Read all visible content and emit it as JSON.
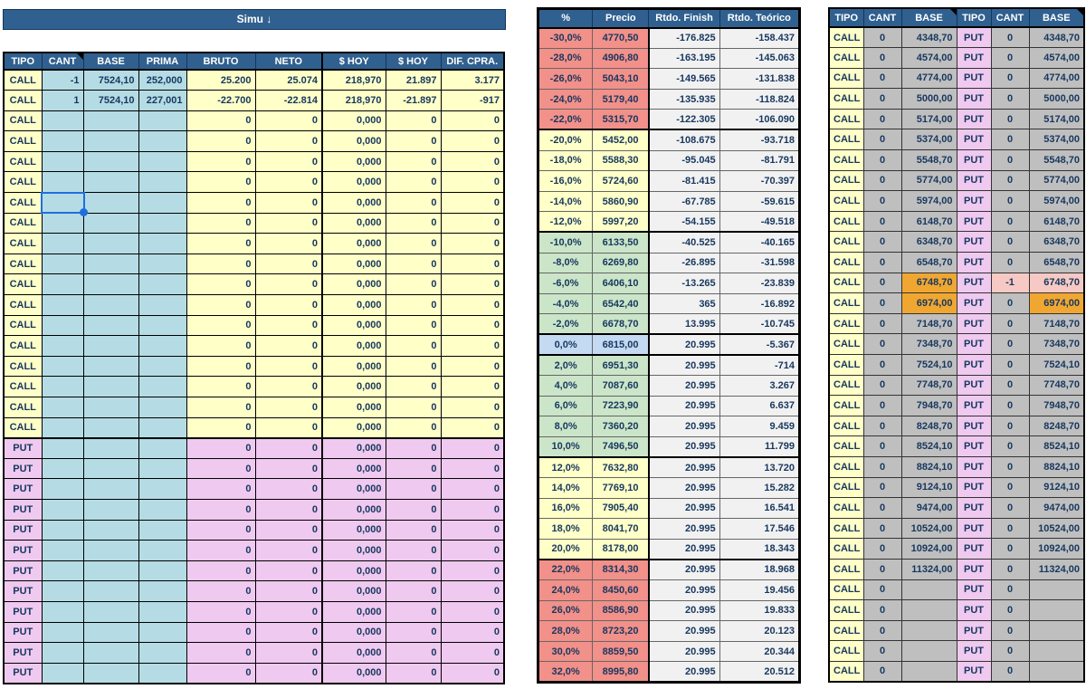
{
  "colors": {
    "header_blue": "#30608F",
    "call_yellow": "#FFFFC8",
    "put_pink": "#EFC9EF",
    "input_blue": "#B5DCE4",
    "band_salmon": "#F2908A",
    "band_yellow": "#FFFFC8",
    "band_green": "#CBE5C8",
    "band_blue": "#C4D9F2",
    "grid_grey": "#BFBFBF",
    "highlight_orange": "#F0A732",
    "highlight_pink": "#F6C9C4",
    "negative_red": "#FF0000",
    "positive_green": "#1B7A1B",
    "selection_blue": "#1E6FDE"
  },
  "left_table": {
    "title": "Simu ↓",
    "headers": [
      "TIPO",
      "CANT",
      "BASE",
      "PRIMA",
      "BRUTO",
      "NETO",
      "$ HOY",
      "$ HOY",
      "DIF. CPRA."
    ],
    "call_row_count": 18,
    "put_row_count": 12,
    "selection": {
      "row_index": 6,
      "column": "CANT"
    },
    "rows": [
      {
        "tipo": "CALL",
        "cant": "-1",
        "base": "7524,10",
        "prima": "252,000",
        "bruto": "25.200",
        "neto": "25.074",
        "hoy_total": "218,970",
        "hoy_unit": "21.897",
        "dif": "3.177"
      },
      {
        "tipo": "CALL",
        "cant": "1",
        "base": "7524,10",
        "prima": "227,001",
        "bruto": "-22.700",
        "neto": "-22.814",
        "hoy_total": "218,970",
        "hoy_unit": "-21.897",
        "dif": "-917"
      },
      {
        "tipo": "CALL",
        "cant": "",
        "base": "",
        "prima": "",
        "bruto": "0",
        "neto": "0",
        "hoy_total": "0,000",
        "hoy_unit": "0",
        "dif": "0"
      },
      {
        "tipo": "CALL",
        "cant": "",
        "base": "",
        "prima": "",
        "bruto": "0",
        "neto": "0",
        "hoy_total": "0,000",
        "hoy_unit": "0",
        "dif": "0"
      },
      {
        "tipo": "CALL",
        "cant": "",
        "base": "",
        "prima": "",
        "bruto": "0",
        "neto": "0",
        "hoy_total": "0,000",
        "hoy_unit": "0",
        "dif": "0"
      },
      {
        "tipo": "CALL",
        "cant": "",
        "base": "",
        "prima": "",
        "bruto": "0",
        "neto": "0",
        "hoy_total": "0,000",
        "hoy_unit": "0",
        "dif": "0"
      },
      {
        "tipo": "CALL",
        "cant": "",
        "base": "",
        "prima": "",
        "bruto": "0",
        "neto": "0",
        "hoy_total": "0,000",
        "hoy_unit": "0",
        "dif": "0"
      },
      {
        "tipo": "CALL",
        "cant": "",
        "base": "",
        "prima": "",
        "bruto": "0",
        "neto": "0",
        "hoy_total": "0,000",
        "hoy_unit": "0",
        "dif": "0"
      },
      {
        "tipo": "CALL",
        "cant": "",
        "base": "",
        "prima": "",
        "bruto": "0",
        "neto": "0",
        "hoy_total": "0,000",
        "hoy_unit": "0",
        "dif": "0"
      },
      {
        "tipo": "CALL",
        "cant": "",
        "base": "",
        "prima": "",
        "bruto": "0",
        "neto": "0",
        "hoy_total": "0,000",
        "hoy_unit": "0",
        "dif": "0"
      },
      {
        "tipo": "CALL",
        "cant": "",
        "base": "",
        "prima": "",
        "bruto": "0",
        "neto": "0",
        "hoy_total": "0,000",
        "hoy_unit": "0",
        "dif": "0"
      },
      {
        "tipo": "CALL",
        "cant": "",
        "base": "",
        "prima": "",
        "bruto": "0",
        "neto": "0",
        "hoy_total": "0,000",
        "hoy_unit": "0",
        "dif": "0"
      },
      {
        "tipo": "CALL",
        "cant": "",
        "base": "",
        "prima": "",
        "bruto": "0",
        "neto": "0",
        "hoy_total": "0,000",
        "hoy_unit": "0",
        "dif": "0"
      },
      {
        "tipo": "CALL",
        "cant": "",
        "base": "",
        "prima": "",
        "bruto": "0",
        "neto": "0",
        "hoy_total": "0,000",
        "hoy_unit": "0",
        "dif": "0"
      },
      {
        "tipo": "CALL",
        "cant": "",
        "base": "",
        "prima": "",
        "bruto": "0",
        "neto": "0",
        "hoy_total": "0,000",
        "hoy_unit": "0",
        "dif": "0"
      },
      {
        "tipo": "CALL",
        "cant": "",
        "base": "",
        "prima": "",
        "bruto": "0",
        "neto": "0",
        "hoy_total": "0,000",
        "hoy_unit": "0",
        "dif": "0"
      },
      {
        "tipo": "CALL",
        "cant": "",
        "base": "",
        "prima": "",
        "bruto": "0",
        "neto": "0",
        "hoy_total": "0,000",
        "hoy_unit": "0",
        "dif": "0"
      },
      {
        "tipo": "CALL",
        "cant": "",
        "base": "",
        "prima": "",
        "bruto": "0",
        "neto": "0",
        "hoy_total": "0,000",
        "hoy_unit": "0",
        "dif": "0"
      },
      {
        "tipo": "PUT",
        "cant": "",
        "base": "",
        "prima": "",
        "bruto": "0",
        "neto": "0",
        "hoy_total": "0,000",
        "hoy_unit": "0",
        "dif": "0"
      },
      {
        "tipo": "PUT",
        "cant": "",
        "base": "",
        "prima": "",
        "bruto": "0",
        "neto": "0",
        "hoy_total": "0,000",
        "hoy_unit": "0",
        "dif": "0"
      },
      {
        "tipo": "PUT",
        "cant": "",
        "base": "",
        "prima": "",
        "bruto": "0",
        "neto": "0",
        "hoy_total": "0,000",
        "hoy_unit": "0",
        "dif": "0"
      },
      {
        "tipo": "PUT",
        "cant": "",
        "base": "",
        "prima": "",
        "bruto": "0",
        "neto": "0",
        "hoy_total": "0,000",
        "hoy_unit": "0",
        "dif": "0"
      },
      {
        "tipo": "PUT",
        "cant": "",
        "base": "",
        "prima": "",
        "bruto": "0",
        "neto": "0",
        "hoy_total": "0,000",
        "hoy_unit": "0",
        "dif": "0"
      },
      {
        "tipo": "PUT",
        "cant": "",
        "base": "",
        "prima": "",
        "bruto": "0",
        "neto": "0",
        "hoy_total": "0,000",
        "hoy_unit": "0",
        "dif": "0"
      },
      {
        "tipo": "PUT",
        "cant": "",
        "base": "",
        "prima": "",
        "bruto": "0",
        "neto": "0",
        "hoy_total": "0,000",
        "hoy_unit": "0",
        "dif": "0"
      },
      {
        "tipo": "PUT",
        "cant": "",
        "base": "",
        "prima": "",
        "bruto": "0",
        "neto": "0",
        "hoy_total": "0,000",
        "hoy_unit": "0",
        "dif": "0"
      },
      {
        "tipo": "PUT",
        "cant": "",
        "base": "",
        "prima": "",
        "bruto": "0",
        "neto": "0",
        "hoy_total": "0,000",
        "hoy_unit": "0",
        "dif": "0"
      },
      {
        "tipo": "PUT",
        "cant": "",
        "base": "",
        "prima": "",
        "bruto": "0",
        "neto": "0",
        "hoy_total": "0,000",
        "hoy_unit": "0",
        "dif": "0"
      },
      {
        "tipo": "PUT",
        "cant": "",
        "base": "",
        "prima": "",
        "bruto": "0",
        "neto": "0",
        "hoy_total": "0,000",
        "hoy_unit": "0",
        "dif": "0"
      },
      {
        "tipo": "PUT",
        "cant": "",
        "base": "",
        "prima": "",
        "bruto": "0",
        "neto": "0",
        "hoy_total": "0,000",
        "hoy_unit": "0",
        "dif": "0"
      }
    ]
  },
  "middle_table": {
    "headers": [
      "%",
      "Precio",
      "Rtdo. Finish",
      "Rtdo. Teórico"
    ],
    "rows": [
      {
        "pct": "-30,0%",
        "precio": "4770,50",
        "finish": "-176.825",
        "teorico": "-158.437",
        "band": "salmon"
      },
      {
        "pct": "-28,0%",
        "precio": "4906,80",
        "finish": "-163.195",
        "teorico": "-145.063",
        "band": "salmon"
      },
      {
        "pct": "-26,0%",
        "precio": "5043,10",
        "finish": "-149.565",
        "teorico": "-131.838",
        "band": "salmon"
      },
      {
        "pct": "-24,0%",
        "precio": "5179,40",
        "finish": "-135.935",
        "teorico": "-118.824",
        "band": "salmon"
      },
      {
        "pct": "-22,0%",
        "precio": "5315,70",
        "finish": "-122.305",
        "teorico": "-106.090",
        "band": "salmon"
      },
      {
        "pct": "-20,0%",
        "precio": "5452,00",
        "finish": "-108.675",
        "teorico": "-93.718",
        "band": "yellow"
      },
      {
        "pct": "-18,0%",
        "precio": "5588,30",
        "finish": "-95.045",
        "teorico": "-81.791",
        "band": "yellow"
      },
      {
        "pct": "-16,0%",
        "precio": "5724,60",
        "finish": "-81.415",
        "teorico": "-70.397",
        "band": "yellow"
      },
      {
        "pct": "-14,0%",
        "precio": "5860,90",
        "finish": "-67.785",
        "teorico": "-59.615",
        "band": "yellow"
      },
      {
        "pct": "-12,0%",
        "precio": "5997,20",
        "finish": "-54.155",
        "teorico": "-49.518",
        "band": "yellow"
      },
      {
        "pct": "-10,0%",
        "precio": "6133,50",
        "finish": "-40.525",
        "teorico": "-40.165",
        "band": "green"
      },
      {
        "pct": "-8,0%",
        "precio": "6269,80",
        "finish": "-26.895",
        "teorico": "-31.598",
        "band": "green"
      },
      {
        "pct": "-6,0%",
        "precio": "6406,10",
        "finish": "-13.265",
        "teorico": "-23.839",
        "band": "green"
      },
      {
        "pct": "-4,0%",
        "precio": "6542,40",
        "finish": "365",
        "teorico": "-16.892",
        "band": "green"
      },
      {
        "pct": "-2,0%",
        "precio": "6678,70",
        "finish": "13.995",
        "teorico": "-10.745",
        "band": "green"
      },
      {
        "pct": "0,0%",
        "precio": "6815,00",
        "finish": "20.995",
        "teorico": "-5.367",
        "band": "blue"
      },
      {
        "pct": "2,0%",
        "precio": "6951,30",
        "finish": "20.995",
        "teorico": "-714",
        "band": "green"
      },
      {
        "pct": "4,0%",
        "precio": "7087,60",
        "finish": "20.995",
        "teorico": "3.267",
        "band": "green"
      },
      {
        "pct": "6,0%",
        "precio": "7223,90",
        "finish": "20.995",
        "teorico": "6.637",
        "band": "green"
      },
      {
        "pct": "8,0%",
        "precio": "7360,20",
        "finish": "20.995",
        "teorico": "9.459",
        "band": "green"
      },
      {
        "pct": "10,0%",
        "precio": "7496,50",
        "finish": "20.995",
        "teorico": "11.799",
        "band": "green"
      },
      {
        "pct": "12,0%",
        "precio": "7632,80",
        "finish": "20.995",
        "teorico": "13.720",
        "band": "yellow"
      },
      {
        "pct": "14,0%",
        "precio": "7769,10",
        "finish": "20.995",
        "teorico": "15.282",
        "band": "yellow"
      },
      {
        "pct": "16,0%",
        "precio": "7905,40",
        "finish": "20.995",
        "teorico": "16.541",
        "band": "yellow"
      },
      {
        "pct": "18,0%",
        "precio": "8041,70",
        "finish": "20.995",
        "teorico": "17.546",
        "band": "yellow"
      },
      {
        "pct": "20,0%",
        "precio": "8178,00",
        "finish": "20.995",
        "teorico": "18.343",
        "band": "yellow"
      },
      {
        "pct": "22,0%",
        "precio": "8314,30",
        "finish": "20.995",
        "teorico": "18.968",
        "band": "salmon"
      },
      {
        "pct": "24,0%",
        "precio": "8450,60",
        "finish": "20.995",
        "teorico": "19.456",
        "band": "salmon"
      },
      {
        "pct": "26,0%",
        "precio": "8586,90",
        "finish": "20.995",
        "teorico": "19.833",
        "band": "salmon"
      },
      {
        "pct": "28,0%",
        "precio": "8723,20",
        "finish": "20.995",
        "teorico": "20.123",
        "band": "salmon"
      },
      {
        "pct": "30,0%",
        "precio": "8859,50",
        "finish": "20.995",
        "teorico": "20.344",
        "band": "salmon"
      },
      {
        "pct": "32,0%",
        "precio": "8995,80",
        "finish": "20.995",
        "teorico": "20.512",
        "band": "salmon"
      }
    ]
  },
  "right_table": {
    "headers": [
      "TIPO",
      "CANT",
      "BASE",
      "TIPO",
      "CANT",
      "BASE"
    ],
    "rows": [
      {
        "call_tipo": "CALL",
        "call_cant": "0",
        "call_base": "4348,70",
        "put_tipo": "PUT",
        "put_cant": "0",
        "put_base": "4348,70"
      },
      {
        "call_tipo": "CALL",
        "call_cant": "0",
        "call_base": "4574,00",
        "put_tipo": "PUT",
        "put_cant": "0",
        "put_base": "4574,00"
      },
      {
        "call_tipo": "CALL",
        "call_cant": "0",
        "call_base": "4774,00",
        "put_tipo": "PUT",
        "put_cant": "0",
        "put_base": "4774,00"
      },
      {
        "call_tipo": "CALL",
        "call_cant": "0",
        "call_base": "5000,00",
        "put_tipo": "PUT",
        "put_cant": "0",
        "put_base": "5000,00"
      },
      {
        "call_tipo": "CALL",
        "call_cant": "0",
        "call_base": "5174,00",
        "put_tipo": "PUT",
        "put_cant": "0",
        "put_base": "5174,00"
      },
      {
        "call_tipo": "CALL",
        "call_cant": "0",
        "call_base": "5374,00",
        "put_tipo": "PUT",
        "put_cant": "0",
        "put_base": "5374,00"
      },
      {
        "call_tipo": "CALL",
        "call_cant": "0",
        "call_base": "5548,70",
        "put_tipo": "PUT",
        "put_cant": "0",
        "put_base": "5548,70"
      },
      {
        "call_tipo": "CALL",
        "call_cant": "0",
        "call_base": "5774,00",
        "put_tipo": "PUT",
        "put_cant": "0",
        "put_base": "5774,00"
      },
      {
        "call_tipo": "CALL",
        "call_cant": "0",
        "call_base": "5974,00",
        "put_tipo": "PUT",
        "put_cant": "0",
        "put_base": "5974,00"
      },
      {
        "call_tipo": "CALL",
        "call_cant": "0",
        "call_base": "6148,70",
        "put_tipo": "PUT",
        "put_cant": "0",
        "put_base": "6148,70"
      },
      {
        "call_tipo": "CALL",
        "call_cant": "0",
        "call_base": "6348,70",
        "put_tipo": "PUT",
        "put_cant": "0",
        "put_base": "6348,70"
      },
      {
        "call_tipo": "CALL",
        "call_cant": "0",
        "call_base": "6548,70",
        "put_tipo": "PUT",
        "put_cant": "0",
        "put_base": "6548,70"
      },
      {
        "call_tipo": "CALL",
        "call_cant": "0",
        "call_base": "6748,70",
        "put_tipo": "PUT",
        "put_cant": "-1",
        "put_base": "6748,70",
        "call_base_hl": "orange",
        "put_cant_hl": "pink",
        "put_base_hl": "pink"
      },
      {
        "call_tipo": "CALL",
        "call_cant": "0",
        "call_base": "6974,00",
        "put_tipo": "PUT",
        "put_cant": "0",
        "put_base": "6974,00",
        "call_base_hl": "orange",
        "put_base_hl": "orange"
      },
      {
        "call_tipo": "CALL",
        "call_cant": "0",
        "call_base": "7148,70",
        "put_tipo": "PUT",
        "put_cant": "0",
        "put_base": "7148,70"
      },
      {
        "call_tipo": "CALL",
        "call_cant": "0",
        "call_base": "7348,70",
        "put_tipo": "PUT",
        "put_cant": "0",
        "put_base": "7348,70"
      },
      {
        "call_tipo": "CALL",
        "call_cant": "0",
        "call_base": "7524,10",
        "put_tipo": "PUT",
        "put_cant": "0",
        "put_base": "7524,10"
      },
      {
        "call_tipo": "CALL",
        "call_cant": "0",
        "call_base": "7748,70",
        "put_tipo": "PUT",
        "put_cant": "0",
        "put_base": "7748,70"
      },
      {
        "call_tipo": "CALL",
        "call_cant": "0",
        "call_base": "7948,70",
        "put_tipo": "PUT",
        "put_cant": "0",
        "put_base": "7948,70"
      },
      {
        "call_tipo": "CALL",
        "call_cant": "0",
        "call_base": "8248,70",
        "put_tipo": "PUT",
        "put_cant": "0",
        "put_base": "8248,70"
      },
      {
        "call_tipo": "CALL",
        "call_cant": "0",
        "call_base": "8524,10",
        "put_tipo": "PUT",
        "put_cant": "0",
        "put_base": "8524,10"
      },
      {
        "call_tipo": "CALL",
        "call_cant": "0",
        "call_base": "8824,10",
        "put_tipo": "PUT",
        "put_cant": "0",
        "put_base": "8824,10"
      },
      {
        "call_tipo": "CALL",
        "call_cant": "0",
        "call_base": "9124,10",
        "put_tipo": "PUT",
        "put_cant": "0",
        "put_base": "9124,10"
      },
      {
        "call_tipo": "CALL",
        "call_cant": "0",
        "call_base": "9474,00",
        "put_tipo": "PUT",
        "put_cant": "0",
        "put_base": "9474,00"
      },
      {
        "call_tipo": "CALL",
        "call_cant": "0",
        "call_base": "10524,00",
        "put_tipo": "PUT",
        "put_cant": "0",
        "put_base": "10524,00"
      },
      {
        "call_tipo": "CALL",
        "call_cant": "0",
        "call_base": "10924,00",
        "put_tipo": "PUT",
        "put_cant": "0",
        "put_base": "10924,00"
      },
      {
        "call_tipo": "CALL",
        "call_cant": "0",
        "call_base": "11324,00",
        "put_tipo": "PUT",
        "put_cant": "0",
        "put_base": "11324,00"
      },
      {
        "call_tipo": "CALL",
        "call_cant": "0",
        "call_base": "",
        "put_tipo": "PUT",
        "put_cant": "0",
        "put_base": ""
      },
      {
        "call_tipo": "CALL",
        "call_cant": "0",
        "call_base": "",
        "put_tipo": "PUT",
        "put_cant": "0",
        "put_base": ""
      },
      {
        "call_tipo": "CALL",
        "call_cant": "0",
        "call_base": "",
        "put_tipo": "PUT",
        "put_cant": "0",
        "put_base": ""
      },
      {
        "call_tipo": "CALL",
        "call_cant": "0",
        "call_base": "",
        "put_tipo": "PUT",
        "put_cant": "0",
        "put_base": ""
      },
      {
        "call_tipo": "CALL",
        "call_cant": "0",
        "call_base": "",
        "put_tipo": "PUT",
        "put_cant": "0",
        "put_base": ""
      }
    ]
  }
}
